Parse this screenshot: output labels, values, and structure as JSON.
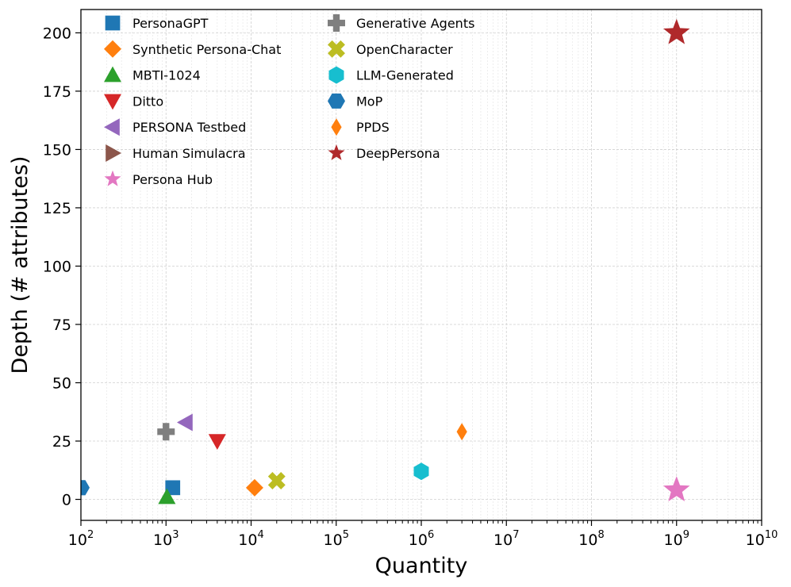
{
  "chart_data": {
    "type": "scatter",
    "xlabel": "Quantity",
    "ylabel": "Depth (# attributes)",
    "xscale": "log",
    "xlim": [
      100,
      10000000000
    ],
    "ylim": [
      -9,
      210
    ],
    "grid": true,
    "legend_placement": "top-left",
    "x_ticks": [
      {
        "value": 100,
        "base": "10",
        "exp": "2"
      },
      {
        "value": 1000,
        "base": "10",
        "exp": "3"
      },
      {
        "value": 10000,
        "base": "10",
        "exp": "4"
      },
      {
        "value": 100000,
        "base": "10",
        "exp": "5"
      },
      {
        "value": 1000000,
        "base": "10",
        "exp": "6"
      },
      {
        "value": 10000000,
        "base": "10",
        "exp": "7"
      },
      {
        "value": 100000000,
        "base": "10",
        "exp": "8"
      },
      {
        "value": 1000000000,
        "base": "10",
        "exp": "9"
      },
      {
        "value": 10000000000,
        "base": "10",
        "exp": "10"
      }
    ],
    "y_ticks": [
      0,
      25,
      50,
      75,
      100,
      125,
      150,
      175,
      200
    ],
    "series": [
      {
        "name": "PersonaGPT",
        "marker": "square",
        "color": "#1f77b4",
        "x": 1200,
        "y": 5
      },
      {
        "name": "Synthetic Persona-Chat",
        "marker": "diamond",
        "color": "#ff7f0e",
        "x": 11000,
        "y": 5
      },
      {
        "name": "MBTI-1024",
        "marker": "triangle-up",
        "color": "#2ca02c",
        "x": 1024,
        "y": 1
      },
      {
        "name": "Ditto",
        "marker": "triangle-down",
        "color": "#d62728",
        "x": 4000,
        "y": 25
      },
      {
        "name": "PERSONA Testbed",
        "marker": "triangle-left",
        "color": "#9467bd",
        "x": 1700,
        "y": 33
      },
      {
        "name": "Human Simulacra",
        "marker": "triangle-right",
        "color": "#8c564b",
        "x": null,
        "y": null
      },
      {
        "name": "Persona Hub",
        "marker": "star",
        "color": "#e377c2",
        "x": 1000000000,
        "y": 4
      },
      {
        "name": "Generative Agents",
        "marker": "plus",
        "color": "#7f7f7f",
        "x": 1000,
        "y": 29
      },
      {
        "name": "OpenCharacter",
        "marker": "x",
        "color": "#bcbd22",
        "x": 20000,
        "y": 8
      },
      {
        "name": "LLM-Generated",
        "marker": "hexagon",
        "color": "#17becf",
        "x": 1000000,
        "y": 12
      },
      {
        "name": "MoP",
        "marker": "hexagon-flat",
        "color": "#1f77b4",
        "x": 100,
        "y": 5
      },
      {
        "name": "PPDS",
        "marker": "thin-diamond",
        "color": "#ff7f0e",
        "x": 3000000,
        "y": 29
      },
      {
        "name": "DeepPersona",
        "marker": "star",
        "color": "#b0292b",
        "x": 1000000000,
        "y": 200
      }
    ]
  }
}
